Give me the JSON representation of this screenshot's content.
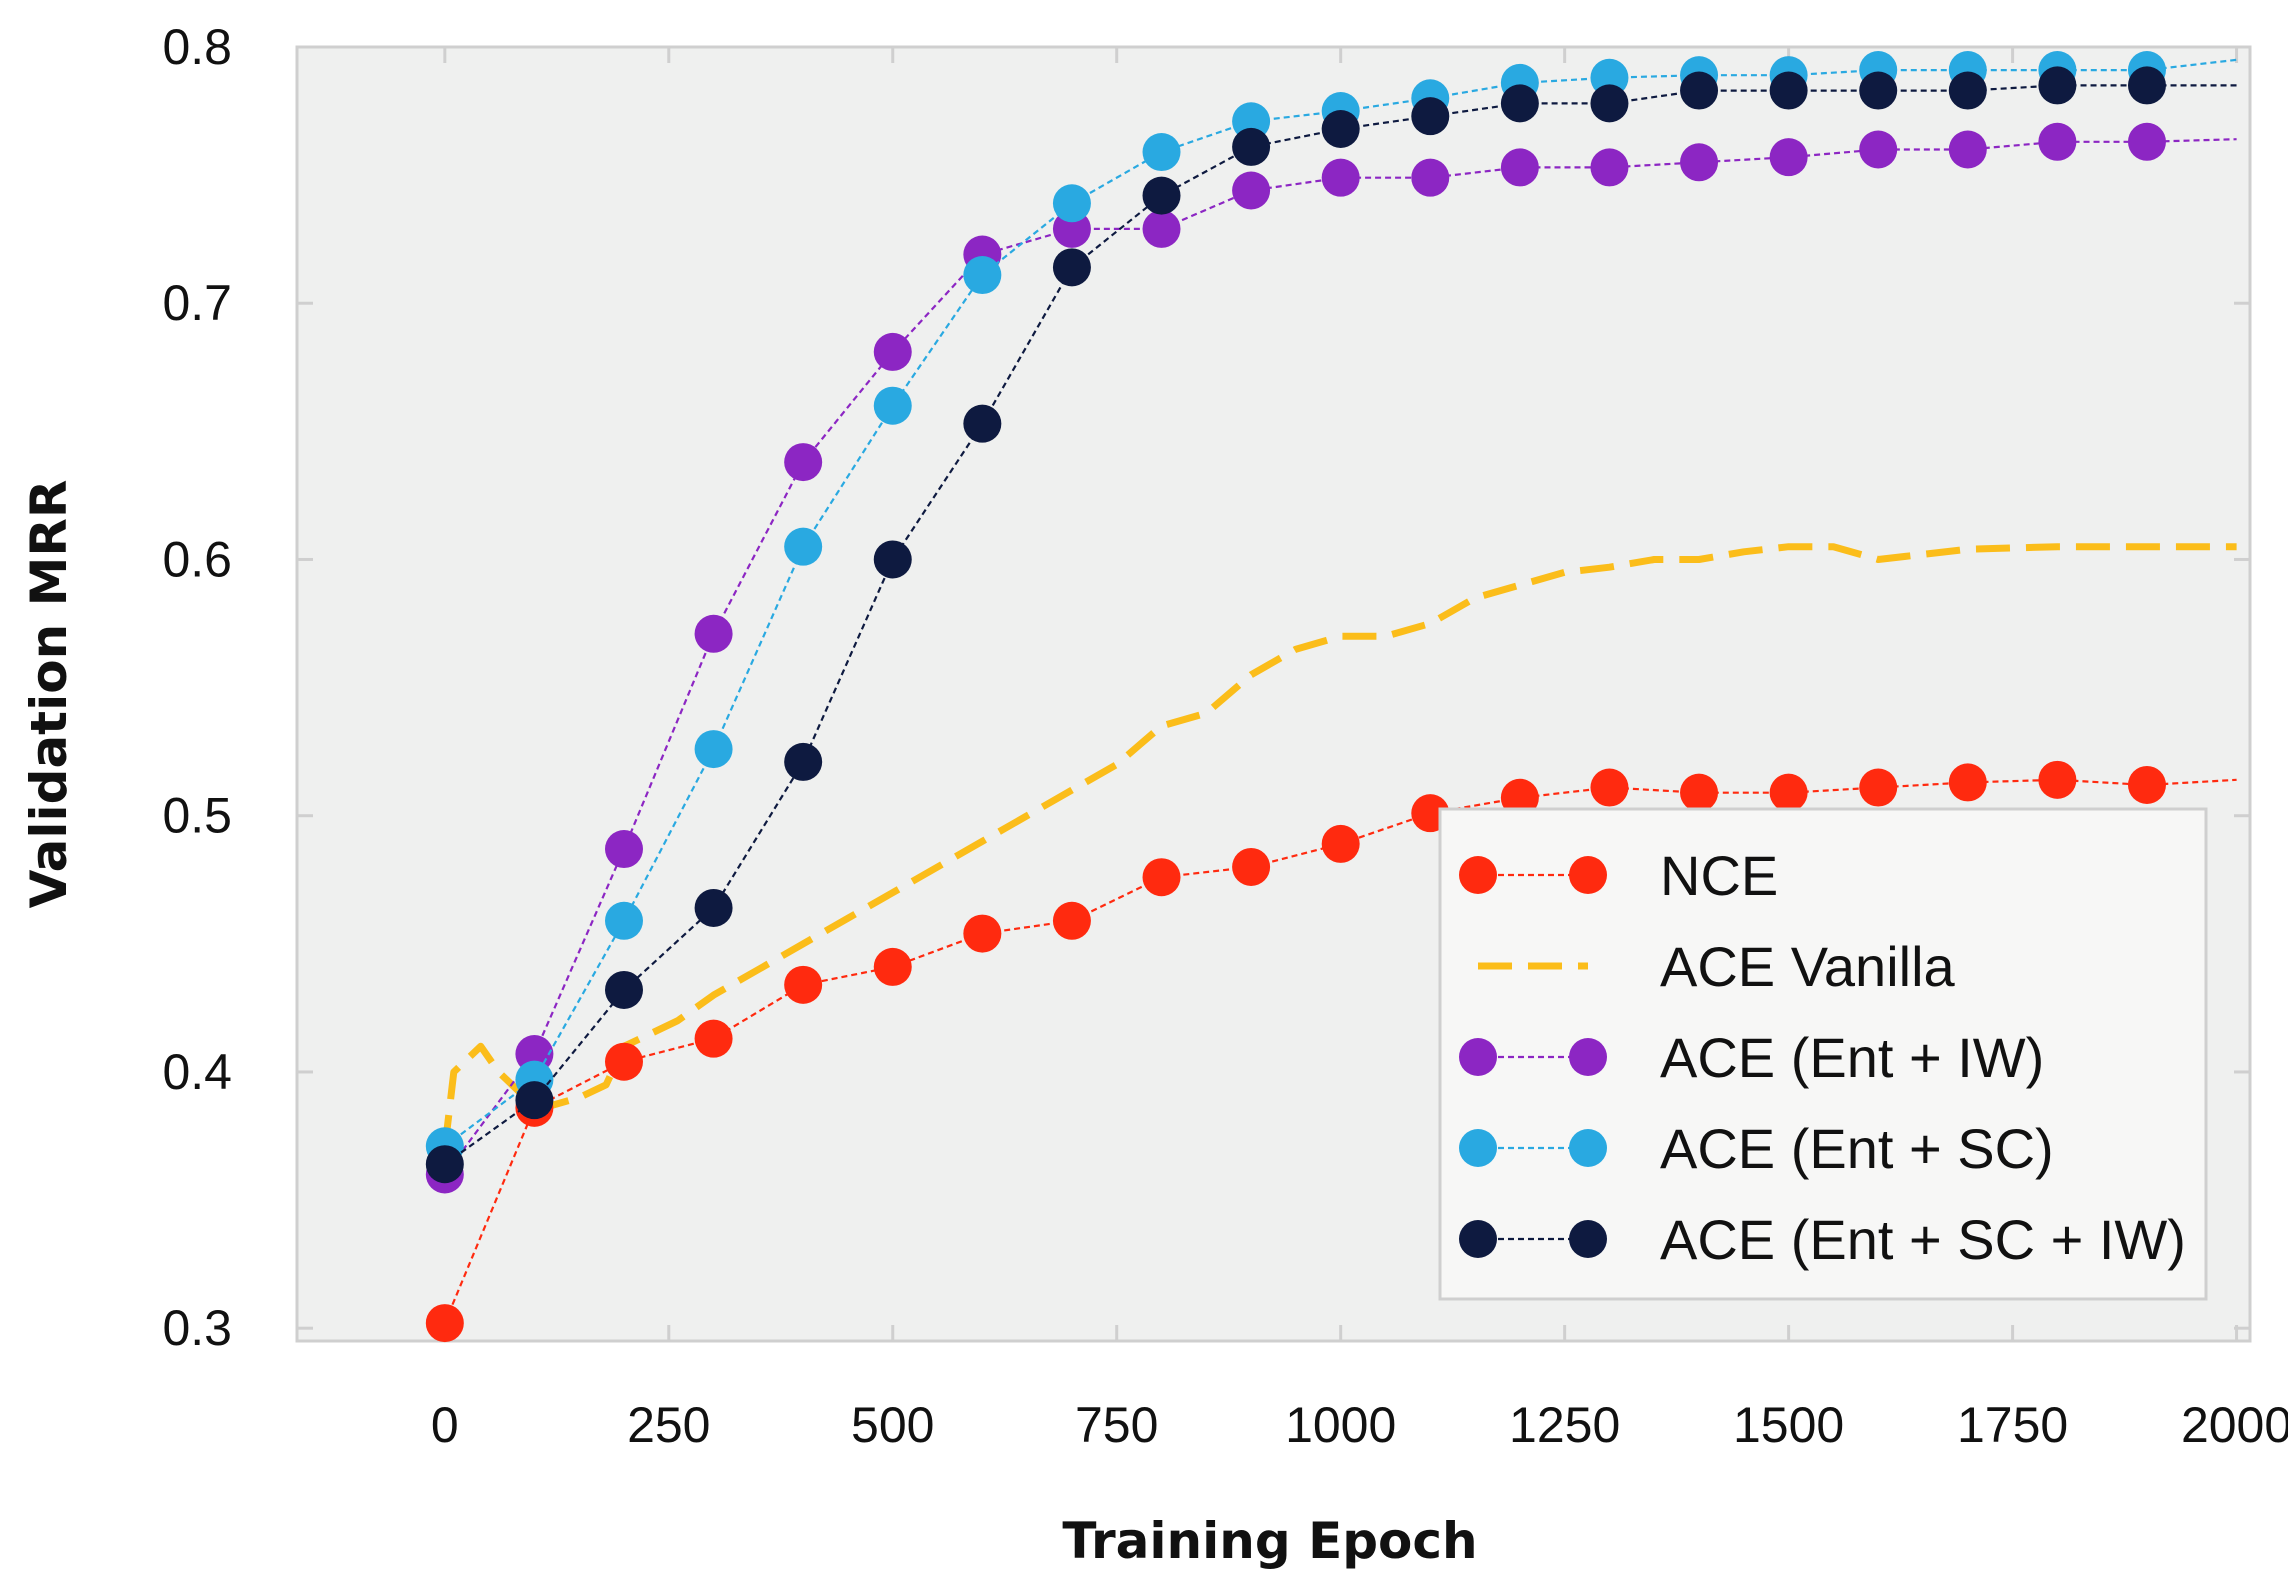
{
  "chart_data": {
    "type": "line",
    "title": "",
    "xlabel": "Training Epoch",
    "ylabel": "Validation MRR",
    "xlim": [
      -165,
      2015
    ],
    "ylim": [
      0.295,
      0.8
    ],
    "xticks": [
      0,
      250,
      500,
      750,
      1000,
      1250,
      1500,
      1750,
      2000
    ],
    "xtick_labels": [
      "0",
      "250",
      "500",
      "750",
      "1000",
      "1250",
      "1500",
      "1750",
      "2000"
    ],
    "yticks": [
      0.3,
      0.4,
      0.5,
      0.6,
      0.7,
      0.8
    ],
    "ytick_labels": [
      "0.3",
      "0.4",
      "0.5",
      "0.6",
      "0.7",
      "0.8"
    ],
    "grid": false,
    "background": "#eff0ef",
    "legend_position": "lower-right",
    "series": [
      {
        "name": "NCE",
        "color": "#ff2a0f",
        "style": "dotted-line-with-markers",
        "x": [
          0,
          100,
          200,
          300,
          400,
          500,
          600,
          700,
          800,
          900,
          1000,
          1100,
          1200,
          1300,
          1400,
          1500,
          1600,
          1700,
          1800,
          1900,
          2000
        ],
        "y": [
          0.302,
          0.386,
          0.404,
          0.413,
          0.434,
          0.441,
          0.454,
          0.459,
          0.476,
          0.48,
          0.489,
          0.501,
          0.507,
          0.511,
          0.509,
          0.509,
          0.511,
          0.513,
          0.514,
          0.512,
          0.514
        ],
        "marker_x": [
          0,
          100,
          200,
          300,
          400,
          500,
          600,
          700,
          800,
          900,
          1000,
          1100,
          1200,
          1300,
          1400,
          1500,
          1600,
          1700,
          1800,
          1900
        ],
        "marker_y": [
          0.302,
          0.386,
          0.404,
          0.413,
          0.434,
          0.441,
          0.454,
          0.459,
          0.476,
          0.48,
          0.489,
          0.501,
          0.507,
          0.511,
          0.509,
          0.509,
          0.511,
          0.513,
          0.514,
          0.512
        ]
      },
      {
        "name": "ACE Vanilla",
        "color": "#fbbd1a",
        "style": "dashed",
        "x": [
          0,
          10,
          40,
          60,
          90,
          100,
          150,
          180,
          200,
          230,
          260,
          300,
          350,
          400,
          450,
          500,
          550,
          600,
          650,
          700,
          750,
          800,
          850,
          900,
          950,
          1000,
          1050,
          1100,
          1150,
          1200,
          1250,
          1300,
          1350,
          1400,
          1450,
          1500,
          1550,
          1600,
          1700,
          1800,
          1900,
          2000
        ],
        "y": [
          0.37,
          0.4,
          0.41,
          0.4,
          0.39,
          0.385,
          0.39,
          0.395,
          0.41,
          0.415,
          0.42,
          0.43,
          0.44,
          0.45,
          0.46,
          0.47,
          0.48,
          0.49,
          0.5,
          0.51,
          0.52,
          0.535,
          0.54,
          0.555,
          0.565,
          0.57,
          0.57,
          0.575,
          0.585,
          0.59,
          0.595,
          0.597,
          0.6,
          0.6,
          0.603,
          0.605,
          0.605,
          0.6,
          0.604,
          0.605,
          0.605,
          0.605
        ]
      },
      {
        "name": "ACE (Ent + IW)",
        "color": "#8c26c3",
        "style": "dotted-line-with-markers",
        "x": [
          0,
          100,
          200,
          300,
          400,
          500,
          600,
          700,
          800,
          900,
          1000,
          1100,
          1200,
          1300,
          1400,
          1500,
          1600,
          1700,
          1800,
          1900,
          2000
        ],
        "y": [
          0.36,
          0.407,
          0.487,
          0.571,
          0.638,
          0.681,
          0.719,
          0.729,
          0.729,
          0.744,
          0.749,
          0.749,
          0.753,
          0.753,
          0.755,
          0.757,
          0.76,
          0.76,
          0.763,
          0.763,
          0.764
        ],
        "marker_x": [
          0,
          100,
          200,
          300,
          400,
          500,
          600,
          700,
          800,
          900,
          1000,
          1100,
          1200,
          1300,
          1400,
          1500,
          1600,
          1700,
          1800,
          1900
        ],
        "marker_y": [
          0.36,
          0.407,
          0.487,
          0.571,
          0.638,
          0.681,
          0.719,
          0.729,
          0.729,
          0.744,
          0.749,
          0.749,
          0.753,
          0.753,
          0.755,
          0.757,
          0.76,
          0.76,
          0.763,
          0.763
        ]
      },
      {
        "name": "ACE (Ent + SC)",
        "color": "#29a9e1",
        "style": "dotted-line-with-markers",
        "x": [
          0,
          100,
          200,
          300,
          400,
          500,
          600,
          700,
          800,
          900,
          1000,
          1100,
          1200,
          1300,
          1400,
          1500,
          1600,
          1700,
          1800,
          1900,
          2000
        ],
        "y": [
          0.371,
          0.397,
          0.459,
          0.526,
          0.605,
          0.66,
          0.711,
          0.739,
          0.759,
          0.771,
          0.775,
          0.78,
          0.786,
          0.788,
          0.789,
          0.789,
          0.791,
          0.791,
          0.791,
          0.791,
          0.795
        ],
        "marker_x": [
          0,
          100,
          200,
          300,
          400,
          500,
          600,
          700,
          800,
          900,
          1000,
          1100,
          1200,
          1300,
          1400,
          1500,
          1600,
          1700,
          1800,
          1900
        ],
        "marker_y": [
          0.371,
          0.397,
          0.459,
          0.526,
          0.605,
          0.66,
          0.711,
          0.739,
          0.759,
          0.771,
          0.775,
          0.78,
          0.786,
          0.788,
          0.789,
          0.789,
          0.791,
          0.791,
          0.791,
          0.791
        ]
      },
      {
        "name": "ACE (Ent + SC + IW)",
        "color": "#0e1a40",
        "style": "dotted-line-with-markers",
        "x": [
          0,
          100,
          200,
          300,
          400,
          500,
          600,
          700,
          800,
          900,
          1000,
          1100,
          1200,
          1300,
          1400,
          1500,
          1600,
          1700,
          1800,
          1900,
          2000
        ],
        "y": [
          0.364,
          0.389,
          0.432,
          0.464,
          0.521,
          0.6,
          0.653,
          0.714,
          0.742,
          0.761,
          0.768,
          0.773,
          0.778,
          0.778,
          0.783,
          0.783,
          0.783,
          0.783,
          0.785,
          0.785,
          0.785
        ],
        "marker_x": [
          0,
          100,
          200,
          300,
          400,
          500,
          600,
          700,
          800,
          900,
          1000,
          1100,
          1200,
          1300,
          1400,
          1500,
          1600,
          1700,
          1800,
          1900
        ],
        "marker_y": [
          0.364,
          0.389,
          0.432,
          0.464,
          0.521,
          0.6,
          0.653,
          0.714,
          0.742,
          0.761,
          0.768,
          0.773,
          0.778,
          0.778,
          0.783,
          0.783,
          0.783,
          0.783,
          0.785,
          0.785
        ]
      }
    ]
  }
}
